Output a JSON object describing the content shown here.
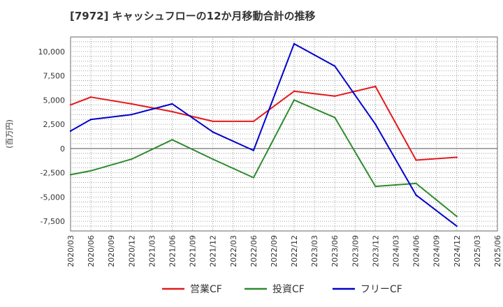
{
  "chart_data": {
    "type": "line",
    "title": "[7972]  キャッシュフローの12か月移動合計の推移",
    "ylabel": "(百万円)",
    "xlabel": "",
    "ylim": [
      -8500,
      11500
    ],
    "yticks": [
      -7500,
      -5000,
      -2500,
      0,
      2500,
      5000,
      7500,
      10000
    ],
    "ytick_labels": [
      "-7,500",
      "-5,000",
      "-2,500",
      "0",
      "2,500",
      "5,000",
      "7,500",
      "10,000"
    ],
    "categories": [
      "2020/03",
      "2020/06",
      "2020/09",
      "2020/12",
      "2021/03",
      "2021/06",
      "2021/09",
      "2021/12",
      "2022/03",
      "2022/06",
      "2022/09",
      "2022/12",
      "2023/03",
      "2023/06",
      "2023/09",
      "2023/12",
      "2024/03",
      "2024/06",
      "2024/09",
      "2024/12",
      "2025/03",
      "2025/06"
    ],
    "grid": true,
    "legend_position": "bottom-center",
    "series": [
      {
        "name": "営業CF",
        "color": "#e31a1c",
        "values": [
          4500,
          5300,
          null,
          4600,
          null,
          3800,
          null,
          2800,
          null,
          2800,
          null,
          5900,
          null,
          5400,
          null,
          6400,
          null,
          -1200,
          null,
          -900,
          null,
          null
        ]
      },
      {
        "name": "投資CF",
        "color": "#2e8b2e",
        "values": [
          -2700,
          -2300,
          null,
          -1100,
          null,
          900,
          null,
          -1100,
          null,
          -3000,
          null,
          5000,
          null,
          3200,
          null,
          -3900,
          null,
          -3600,
          null,
          -7000,
          null,
          null
        ]
      },
      {
        "name": "フリーCF",
        "color": "#0000cc",
        "values": [
          1800,
          3000,
          null,
          3500,
          null,
          4600,
          null,
          1700,
          null,
          -200,
          null,
          10800,
          null,
          8500,
          null,
          2500,
          null,
          -4800,
          null,
          -8000,
          null,
          null
        ]
      }
    ]
  }
}
